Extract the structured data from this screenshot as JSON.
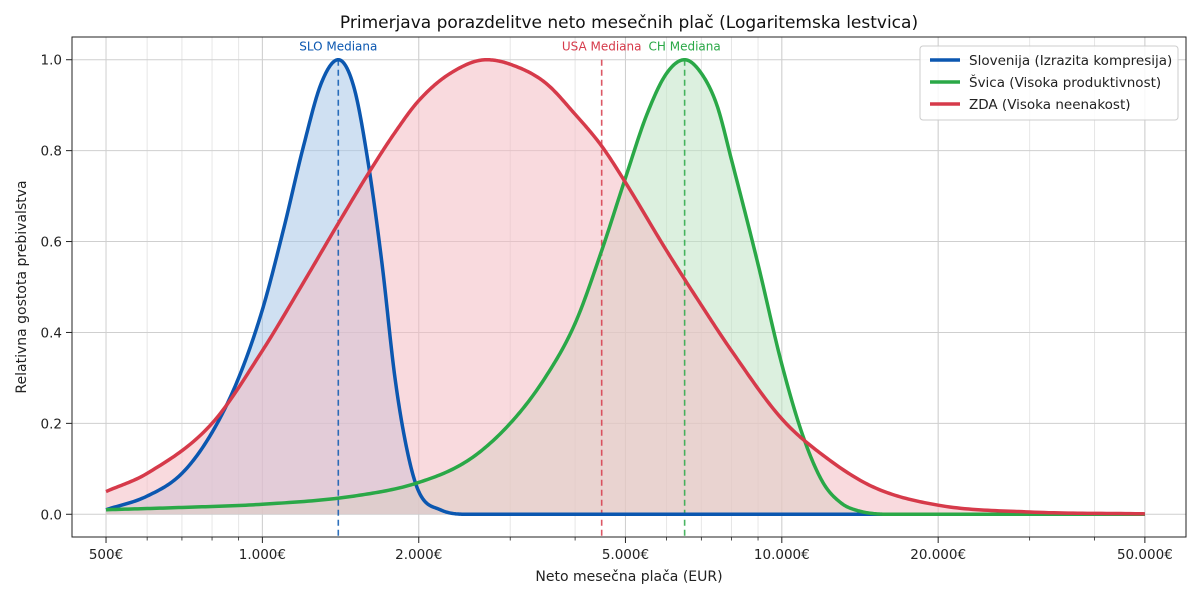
{
  "chart_data": {
    "type": "line",
    "title": "Primerjava porazdelitve neto mesečnih plač (Logaritemska lestvica)",
    "xlabel": "Neto mesečna plača (EUR)",
    "ylabel": "Relativna gostota prebivalstva",
    "xscale": "log",
    "xlim": [
      430,
      60000
    ],
    "ylim": [
      -0.05,
      1.05
    ],
    "x_ticks": [
      500,
      1000,
      2000,
      5000,
      10000,
      20000,
      50000
    ],
    "x_tick_labels": [
      "500€",
      "1.000€",
      "2.000€",
      "5.000€",
      "10.000€",
      "20.000€",
      "50.000€"
    ],
    "y_ticks": [
      0.0,
      0.2,
      0.4,
      0.6,
      0.8,
      1.0
    ],
    "y_tick_labels": [
      "0.0",
      "0.2",
      "0.4",
      "0.6",
      "0.8",
      "1.0"
    ],
    "grid": true,
    "legend_position": "top-right",
    "series": [
      {
        "name": "Slovenija (Izrazita kompresija)",
        "color": "#0b57b0",
        "fill": "#a8c6e8",
        "x": [
          500,
          600,
          700,
          800,
          900,
          1000,
          1100,
          1200,
          1300,
          1400,
          1500,
          1600,
          1700,
          1800,
          1900,
          2000,
          2200,
          2500,
          3000,
          50000
        ],
        "y": [
          0.01,
          0.04,
          0.09,
          0.18,
          0.3,
          0.45,
          0.63,
          0.81,
          0.95,
          1.0,
          0.94,
          0.77,
          0.55,
          0.3,
          0.14,
          0.05,
          0.01,
          0.0,
          0.0,
          0.0
        ]
      },
      {
        "name": "Švica (Visoka produktivnost)",
        "color": "#2aa847",
        "fill": "#bfe3c5",
        "x": [
          500,
          700,
          1000,
          1500,
          2000,
          2500,
          3000,
          3500,
          4000,
          4500,
          5000,
          5500,
          6000,
          6500,
          7000,
          7500,
          8000,
          9000,
          10000,
          11000,
          12000,
          13000,
          14000,
          16000,
          20000,
          50000
        ],
        "y": [
          0.01,
          0.015,
          0.022,
          0.04,
          0.07,
          0.12,
          0.2,
          0.3,
          0.42,
          0.58,
          0.74,
          0.88,
          0.97,
          1.0,
          0.97,
          0.9,
          0.78,
          0.55,
          0.33,
          0.17,
          0.07,
          0.025,
          0.008,
          0.0,
          0.0,
          0.0
        ]
      },
      {
        "name": "ZDA (Visoka neenakost)",
        "color": "#d63a4a",
        "fill": "#f4bcc3",
        "x": [
          500,
          600,
          800,
          1000,
          1200,
          1400,
          1600,
          1800,
          2000,
          2300,
          2700,
          3000,
          3500,
          4000,
          4500,
          5000,
          6000,
          7000,
          8000,
          10000,
          12000,
          15000,
          20000,
          30000,
          50000
        ],
        "y": [
          0.05,
          0.09,
          0.2,
          0.36,
          0.51,
          0.64,
          0.75,
          0.84,
          0.91,
          0.97,
          1.0,
          0.99,
          0.95,
          0.88,
          0.81,
          0.73,
          0.58,
          0.46,
          0.36,
          0.21,
          0.13,
          0.06,
          0.02,
          0.005,
          0.001
        ]
      }
    ],
    "medians": [
      {
        "label": "SLO Mediana",
        "value": 1400,
        "color": "#0b57b0"
      },
      {
        "label": "USA Mediana",
        "value": 4500,
        "color": "#d63a4a"
      },
      {
        "label": "CH Mediana",
        "value": 6500,
        "color": "#2aa847"
      }
    ]
  }
}
